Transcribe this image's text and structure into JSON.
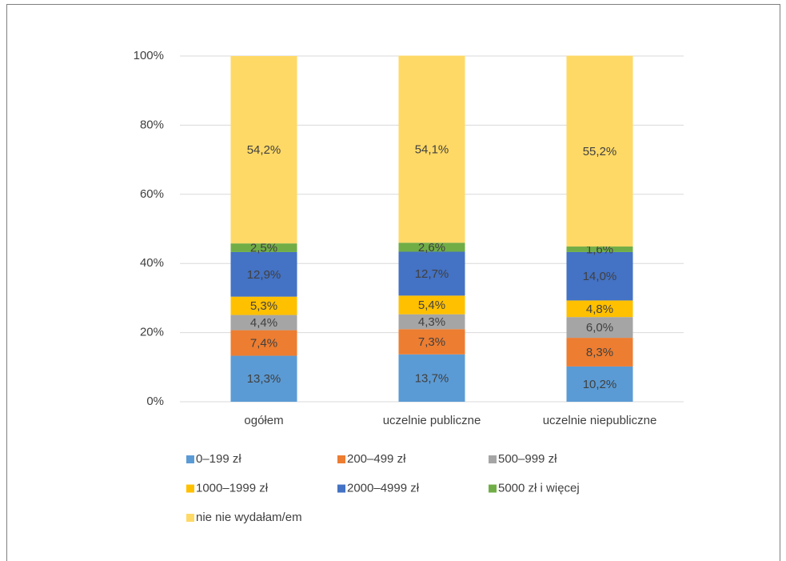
{
  "chart_data": {
    "type": "stacked_bar",
    "categories": [
      "ogółem",
      "uczelnie publiczne",
      "uczelnie niepubliczne"
    ],
    "series": [
      {
        "name": "0–199 zł",
        "color": "#5b9bd5",
        "values": [
          13.3,
          13.7,
          10.2
        ],
        "value_labels": [
          "13,3%",
          "13,7%",
          "10,2%"
        ]
      },
      {
        "name": "200–499 zł",
        "color": "#ed7d31",
        "values": [
          7.4,
          7.3,
          8.3
        ],
        "value_labels": [
          "7,4%",
          "7,3%",
          "8,3%"
        ]
      },
      {
        "name": "500–999 zł",
        "color": "#a5a5a5",
        "values": [
          4.4,
          4.3,
          6.0
        ],
        "value_labels": [
          "4,4%",
          "4,3%",
          "6,0%"
        ]
      },
      {
        "name": "1000–1999 zł",
        "color": "#ffc000",
        "values": [
          5.3,
          5.4,
          4.8
        ],
        "value_labels": [
          "5,3%",
          "5,4%",
          "4,8%"
        ]
      },
      {
        "name": "2000–4999 zł",
        "color": "#4472c4",
        "values": [
          12.9,
          12.7,
          14.0
        ],
        "value_labels": [
          "12,9%",
          "12,7%",
          "14,0%"
        ]
      },
      {
        "name": "5000 zł i więcej",
        "color": "#70ad47",
        "values": [
          2.5,
          2.6,
          1.6
        ],
        "value_labels": [
          "2,5%",
          "2,6%",
          "1,6%"
        ]
      },
      {
        "name": "nie nie wydałam/em",
        "color": "#ffd966",
        "values": [
          54.2,
          54.1,
          55.2
        ],
        "value_labels": [
          "54,2%",
          "54,1%",
          "55,2%"
        ]
      }
    ],
    "ylim": [
      0,
      100
    ],
    "yticks": [
      {
        "value": 0,
        "label": "0%"
      },
      {
        "value": 20,
        "label": "20%"
      },
      {
        "value": 40,
        "label": "40%"
      },
      {
        "value": 60,
        "label": "60%"
      },
      {
        "value": 80,
        "label": "80%"
      },
      {
        "value": 100,
        "label": "100%"
      }
    ],
    "grid": true,
    "legend": "bottom"
  }
}
